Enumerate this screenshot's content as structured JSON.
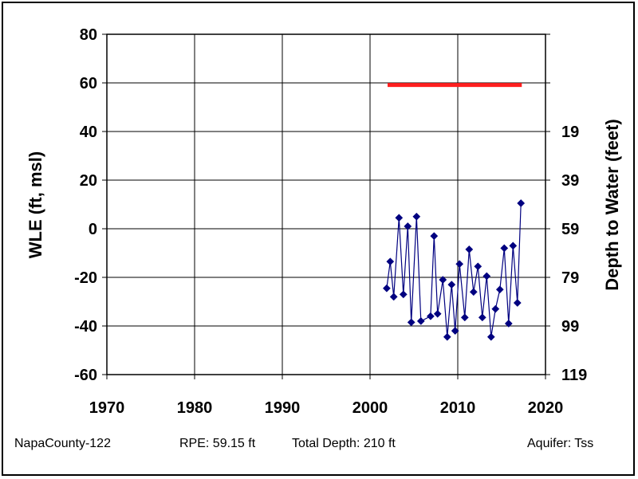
{
  "chart_data": {
    "type": "scatter",
    "xlabel": "",
    "ylabel": "WLE (ft, msl)",
    "y2label": "Depth to Water (feet)",
    "xlim": [
      1970,
      2020
    ],
    "ylim": [
      -60,
      80
    ],
    "x_ticks": [
      1970,
      1980,
      1990,
      2000,
      2010,
      2020
    ],
    "y_ticks": [
      -60,
      -40,
      -20,
      0,
      20,
      40,
      60,
      80
    ],
    "y2_ticks": [
      {
        "wle": 40,
        "label": "19"
      },
      {
        "wle": 20,
        "label": "39"
      },
      {
        "wle": 0,
        "label": "59"
      },
      {
        "wle": -20,
        "label": "79"
      },
      {
        "wle": -40,
        "label": "99"
      },
      {
        "wle": -60,
        "label": "119"
      }
    ],
    "grid": true,
    "reference_line": {
      "name": "RPE",
      "y": 59.15,
      "x_start": 2002,
      "x_end": 2017.3,
      "color": "#ff1f1f"
    },
    "series": [
      {
        "color": "#000080",
        "marker": "diamond",
        "points": [
          [
            2001.9,
            -24.5
          ],
          [
            2002.3,
            -13.5
          ],
          [
            2002.7,
            -28
          ],
          [
            2003.3,
            4.5
          ],
          [
            2003.8,
            -27
          ],
          [
            2004.3,
            1
          ],
          [
            2004.7,
            -38.5
          ],
          [
            2005.3,
            5
          ],
          [
            2005.8,
            -38
          ],
          [
            2006.9,
            -36
          ],
          [
            2007.3,
            -3
          ],
          [
            2007.7,
            -35
          ],
          [
            2008.3,
            -21
          ],
          [
            2008.8,
            -44.5
          ],
          [
            2009.3,
            -23
          ],
          [
            2009.7,
            -42
          ],
          [
            2010.2,
            -14.5
          ],
          [
            2010.8,
            -36.5
          ],
          [
            2011.3,
            -8.5
          ],
          [
            2011.8,
            -26
          ],
          [
            2012.3,
            -15.5
          ],
          [
            2012.8,
            -36.5
          ],
          [
            2013.3,
            -19.5
          ],
          [
            2013.8,
            -44.5
          ],
          [
            2014.3,
            -33
          ],
          [
            2014.8,
            -25
          ],
          [
            2015.3,
            -8
          ],
          [
            2015.8,
            -39
          ],
          [
            2016.3,
            -7
          ],
          [
            2016.8,
            -30.5
          ],
          [
            2017.2,
            10.5
          ]
        ]
      }
    ]
  },
  "footer": {
    "well_id": "NapaCounty-122",
    "rpe": "RPE: 59.15 ft",
    "total_depth": "Total Depth: 210 ft",
    "aquifer": "Aquifer: Tss"
  }
}
